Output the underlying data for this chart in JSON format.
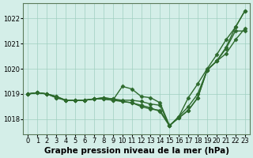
{
  "background_color": "#d4eee8",
  "line_color": "#2d6a2d",
  "marker": "D",
  "markersize": 2.5,
  "linewidth": 1.0,
  "xlabel": "Graphe pression niveau de la mer (hPa)",
  "xlabel_fontsize": 7.5,
  "tick_fontsize": 6.0,
  "xlim": [
    -0.5,
    23.5
  ],
  "ylim": [
    1017.4,
    1022.6
  ],
  "yticks": [
    1018,
    1019,
    1020,
    1021,
    1022
  ],
  "xticks": [
    0,
    1,
    2,
    3,
    4,
    5,
    6,
    7,
    8,
    9,
    10,
    11,
    12,
    13,
    14,
    15,
    16,
    17,
    18,
    19,
    20,
    21,
    22,
    23
  ],
  "series": [
    [
      1019.0,
      1019.05,
      1019.0,
      1018.9,
      1018.75,
      1018.75,
      1018.75,
      1018.8,
      1018.85,
      1018.8,
      1018.75,
      1018.75,
      1018.7,
      1018.6,
      1018.55,
      1017.73,
      1018.1,
      1018.85,
      1019.4,
      1020.0,
      1020.55,
      1021.15,
      1021.65,
      1022.3
    ],
    [
      1019.0,
      1019.05,
      1019.0,
      1018.9,
      1018.75,
      1018.75,
      1018.75,
      1018.8,
      1018.85,
      1018.8,
      1018.7,
      1018.65,
      1018.55,
      1018.45,
      1018.3,
      1017.73,
      1018.1,
      1018.5,
      1019.0,
      1019.95,
      1020.3,
      1020.85,
      1021.65,
      1022.3
    ],
    [
      1019.0,
      1019.05,
      1019.0,
      1018.85,
      1018.75,
      1018.75,
      1018.75,
      1018.8,
      1018.8,
      1018.75,
      1018.7,
      1018.65,
      1018.5,
      1018.4,
      1018.35,
      1017.75,
      1018.05,
      1018.35,
      1018.85,
      1019.95,
      1020.3,
      1020.8,
      1021.5,
      1021.5
    ],
    [
      1019.0,
      1019.05,
      1019.0,
      1018.85,
      1018.75,
      1018.75,
      1018.75,
      1018.8,
      1018.8,
      1018.75,
      1019.3,
      1019.2,
      1018.9,
      1018.85,
      1018.65,
      1017.75,
      1018.05,
      1018.35,
      1018.85,
      1019.95,
      1020.3,
      1020.6,
      1021.15,
      1021.6
    ]
  ]
}
